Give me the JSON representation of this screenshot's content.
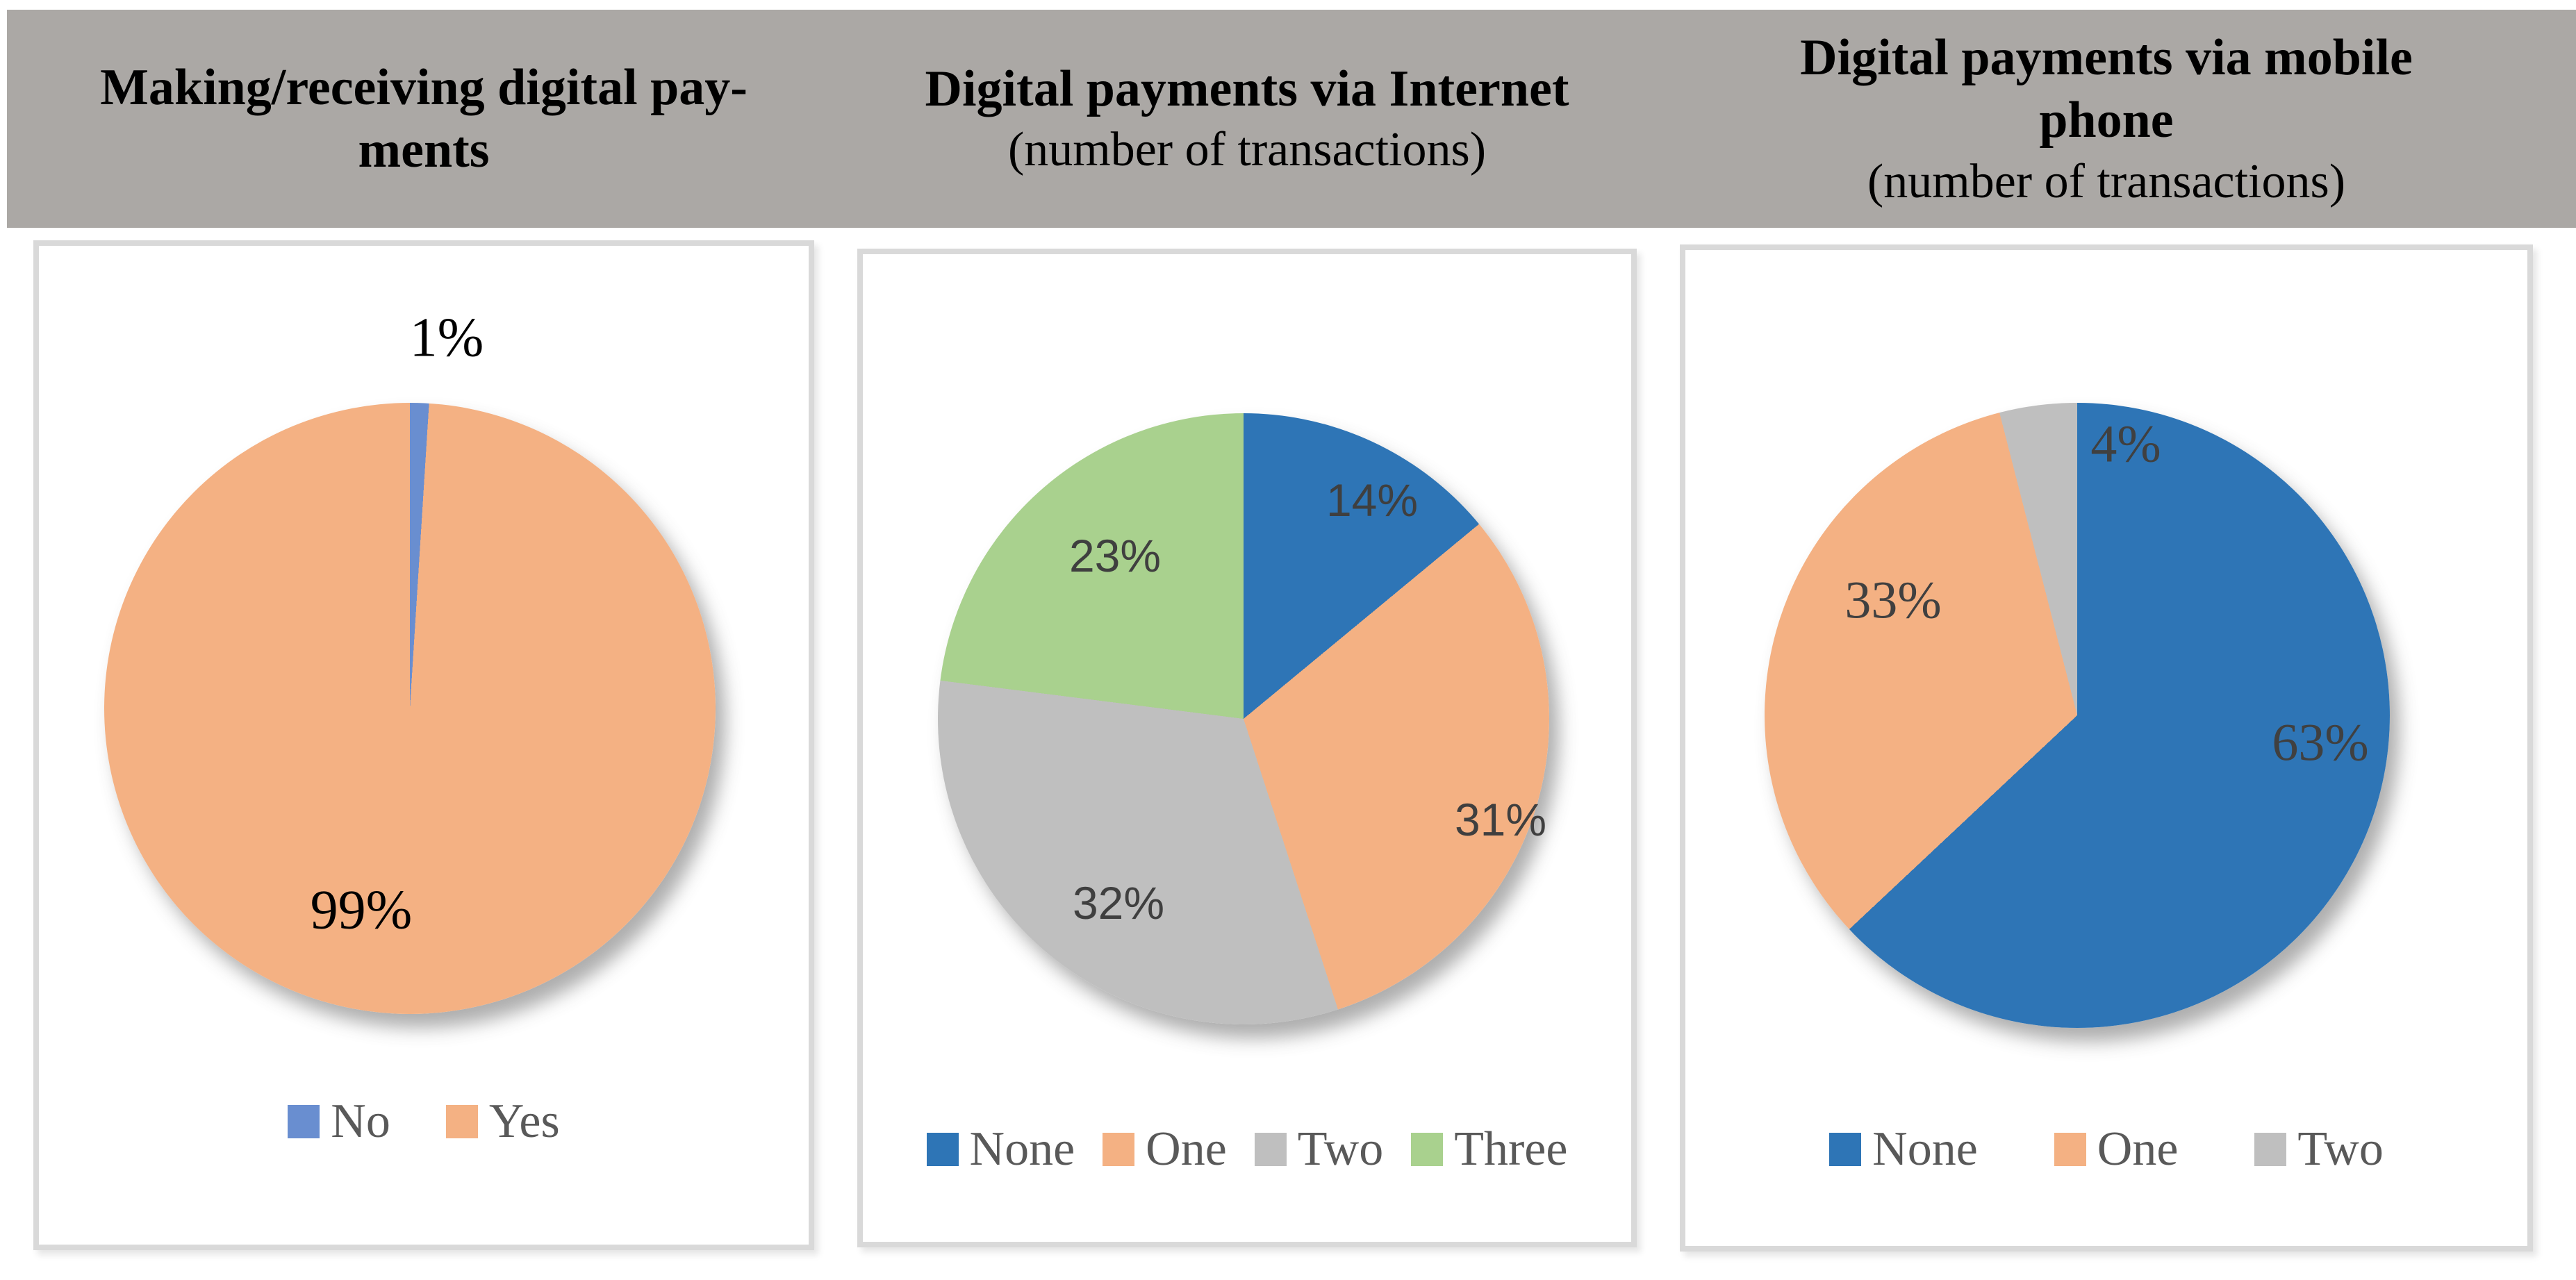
{
  "header": {
    "background": "#ABA8A5",
    "text_color": "#000000",
    "columns": [
      {
        "title_lines": [
          "Making/receiving digital pay-",
          "ments"
        ],
        "subtitle": ""
      },
      {
        "title_lines": [
          "Digital payments via Internet"
        ],
        "subtitle": "(number of transactions)"
      },
      {
        "title_lines": [
          "Digital payments via mobile",
          "phone"
        ],
        "subtitle": "(number of transactions)"
      }
    ]
  },
  "chart_data": [
    {
      "type": "pie",
      "title": "Making/receiving digital payments",
      "categories": [
        "No",
        "Yes"
      ],
      "values": [
        1,
        99
      ],
      "slices": [
        {
          "label": "No",
          "value": 1,
          "color": "#698ED0"
        },
        {
          "label": "Yes",
          "value": 99,
          "color": "#F4B183"
        }
      ],
      "data_labels": [
        "1%",
        "99%"
      ],
      "legend_position": "bottom",
      "start_angle_deg": 0,
      "direction": "clockwise"
    },
    {
      "type": "pie",
      "title": "Digital payments via Internet (number of transactions)",
      "categories": [
        "None",
        "One",
        "Two",
        "Three"
      ],
      "values": [
        14,
        31,
        32,
        23
      ],
      "slices": [
        {
          "label": "None",
          "value": 14,
          "color": "#2E75B6"
        },
        {
          "label": "One",
          "value": 31,
          "color": "#F4B183"
        },
        {
          "label": "Two",
          "value": 32,
          "color": "#BFBFBF"
        },
        {
          "label": "Three",
          "value": 23,
          "color": "#A9D18E"
        }
      ],
      "data_labels": [
        "14%",
        "31%",
        "32%",
        "23%"
      ],
      "legend_position": "bottom",
      "start_angle_deg": 0,
      "direction": "clockwise"
    },
    {
      "type": "pie",
      "title": "Digital payments via mobile phone (number of transactions)",
      "categories": [
        "None",
        "One",
        "Two"
      ],
      "values": [
        63,
        33,
        4
      ],
      "slices": [
        {
          "label": "None",
          "value": 63,
          "color": "#2E75B6"
        },
        {
          "label": "One",
          "value": 33,
          "color": "#F4B183"
        },
        {
          "label": "Two",
          "value": 4,
          "color": "#BFBFBF"
        }
      ],
      "data_labels": [
        "63%",
        "33%",
        "4%"
      ],
      "legend_position": "bottom",
      "start_angle_deg": 0,
      "direction": "clockwise"
    }
  ],
  "styles": {
    "panel_border": "#D9D9D9",
    "legend_text_color": "#595959",
    "label_color_dark": "#404040",
    "label_color_black": "#000000"
  }
}
